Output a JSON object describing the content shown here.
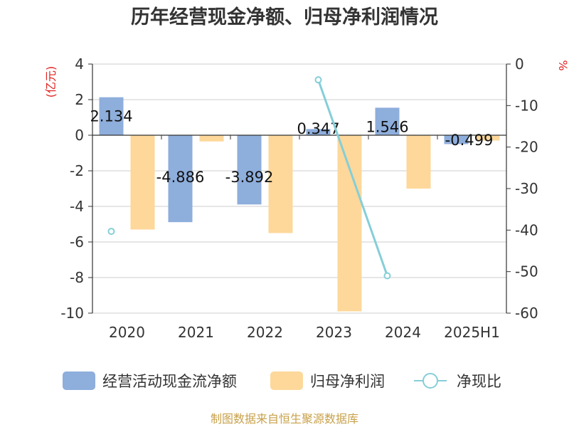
{
  "chart_data": {
    "type": "bar",
    "title": "历年经营现金净额、归母净利润情况",
    "categories": [
      "2020",
      "2021",
      "2022",
      "2023",
      "2024",
      "2025H1"
    ],
    "left_axis": {
      "unit": "(亿元)",
      "range": [
        -10,
        4
      ],
      "ticks": [
        "4",
        "2",
        "0",
        "-2",
        "-4",
        "-6",
        "-8",
        "-10"
      ]
    },
    "right_axis": {
      "unit": "%",
      "range": [
        -60,
        0
      ],
      "ticks": [
        "0",
        "-10",
        "-20",
        "-30",
        "-40",
        "-50",
        "-60"
      ]
    },
    "grid": true,
    "legend_position": "bottom",
    "series": [
      {
        "name": "经营活动现金流净额",
        "kind": "bar",
        "axis": "left",
        "color": "#8eaedc",
        "values": [
          2.134,
          -4.886,
          -3.892,
          0.347,
          1.546,
          -0.499
        ],
        "labels": [
          "2.134",
          "-4.886",
          "-3.892",
          "0.347",
          "1.546",
          "-0.499"
        ]
      },
      {
        "name": "归母净利润",
        "kind": "bar",
        "axis": "left",
        "color": "#fdd89a",
        "values": [
          -5.3,
          -0.35,
          -5.5,
          -9.9,
          -3.0,
          -0.3
        ]
      },
      {
        "name": "净现比",
        "kind": "line",
        "axis": "right",
        "color": "#85ced8",
        "values": [
          -40.3,
          null,
          null,
          -3.8,
          -51.0,
          null
        ]
      }
    ]
  },
  "footer": "制图数据来自恒生聚源数据库"
}
